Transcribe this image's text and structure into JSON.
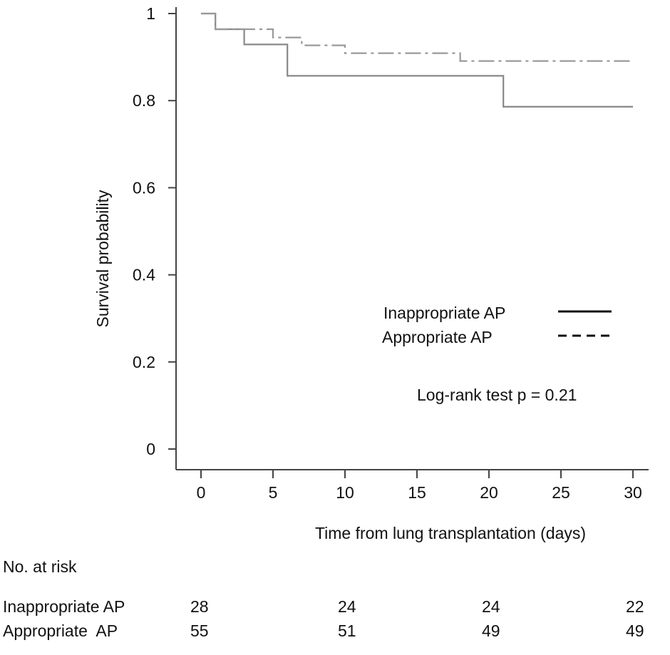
{
  "chart_data": {
    "type": "line",
    "title": "",
    "xlabel": "Time from lung transplantation (days)",
    "ylabel": "Survival probability",
    "xlim": [
      0,
      30
    ],
    "ylim": [
      0,
      1
    ],
    "x_ticks": [
      0,
      5,
      10,
      15,
      20,
      25,
      30
    ],
    "y_ticks": [
      0,
      0.2,
      0.4,
      0.6,
      0.8,
      1
    ],
    "y_tick_labels": [
      "0",
      "0.2",
      "0.4",
      "0.6",
      "0.8",
      "1"
    ],
    "legend_placement": "right",
    "series": [
      {
        "name": "Inappropriate AP",
        "style": "solid",
        "color": "#888888",
        "steps": [
          [
            0,
            1.0
          ],
          [
            1,
            0.964
          ],
          [
            3,
            0.929
          ],
          [
            6,
            0.857
          ],
          [
            21,
            0.786
          ],
          [
            30,
            0.786
          ]
        ]
      },
      {
        "name": "Appropriate AP",
        "style": "dashed",
        "color": "#999999",
        "steps": [
          [
            0,
            1.0
          ],
          [
            1,
            0.964
          ],
          [
            5,
            0.945
          ],
          [
            7,
            0.927
          ],
          [
            10,
            0.909
          ],
          [
            18,
            0.891
          ],
          [
            30,
            0.891
          ]
        ]
      }
    ],
    "annotations": [
      "Log-rank test p = 0.21"
    ]
  },
  "risk_table": {
    "header": "No. at risk",
    "times": [
      0,
      10,
      20,
      30
    ],
    "rows": [
      {
        "label": "Inappropriate AP",
        "counts": [
          "28",
          "24",
          "24",
          "22"
        ]
      },
      {
        "label": "Appropriate  AP",
        "counts": [
          "55",
          "51",
          "49",
          "49"
        ]
      }
    ]
  }
}
